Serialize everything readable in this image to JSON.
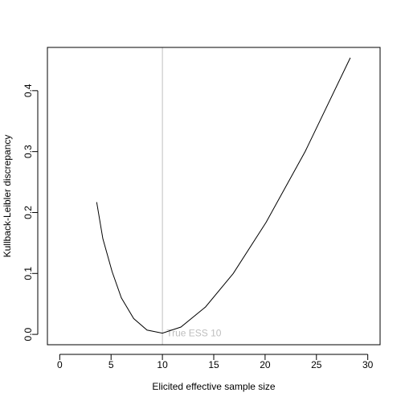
{
  "chart_data": {
    "type": "line",
    "title": "",
    "xlabel": "Elicited effective sample size",
    "ylabel": "Kullback-Leibler discrepancy",
    "xlim": [
      -1.2,
      31.2
    ],
    "ylim": [
      -0.017,
      0.471
    ],
    "x_ticks": [
      0,
      5,
      10,
      15,
      20,
      25,
      30
    ],
    "y_ticks": [
      0.0,
      0.1,
      0.2,
      0.3,
      0.4
    ],
    "x_tick_labels": [
      "0",
      "5",
      "10",
      "15",
      "20",
      "25",
      "30"
    ],
    "y_tick_labels": [
      "0.0",
      "0.1",
      "0.2",
      "0.3",
      "0.4"
    ],
    "grid": false,
    "legend": "none",
    "series": [
      {
        "color": "#000000",
        "x": [
          3.6,
          4.2,
          5.1,
          6.0,
          7.2,
          8.5,
          10.0,
          11.8,
          14.2,
          16.9,
          20.1,
          23.9,
          28.3
        ],
        "y": [
          0.217,
          0.157,
          0.103,
          0.06,
          0.026,
          0.007,
          0.002,
          0.012,
          0.045,
          0.1,
          0.184,
          0.3,
          0.454
        ]
      }
    ],
    "annotations": [
      {
        "type": "vline",
        "x": 10,
        "color": "#bebebe",
        "label": "True ESS 10",
        "label_x": 10.4,
        "label_y": 0.002
      }
    ]
  }
}
